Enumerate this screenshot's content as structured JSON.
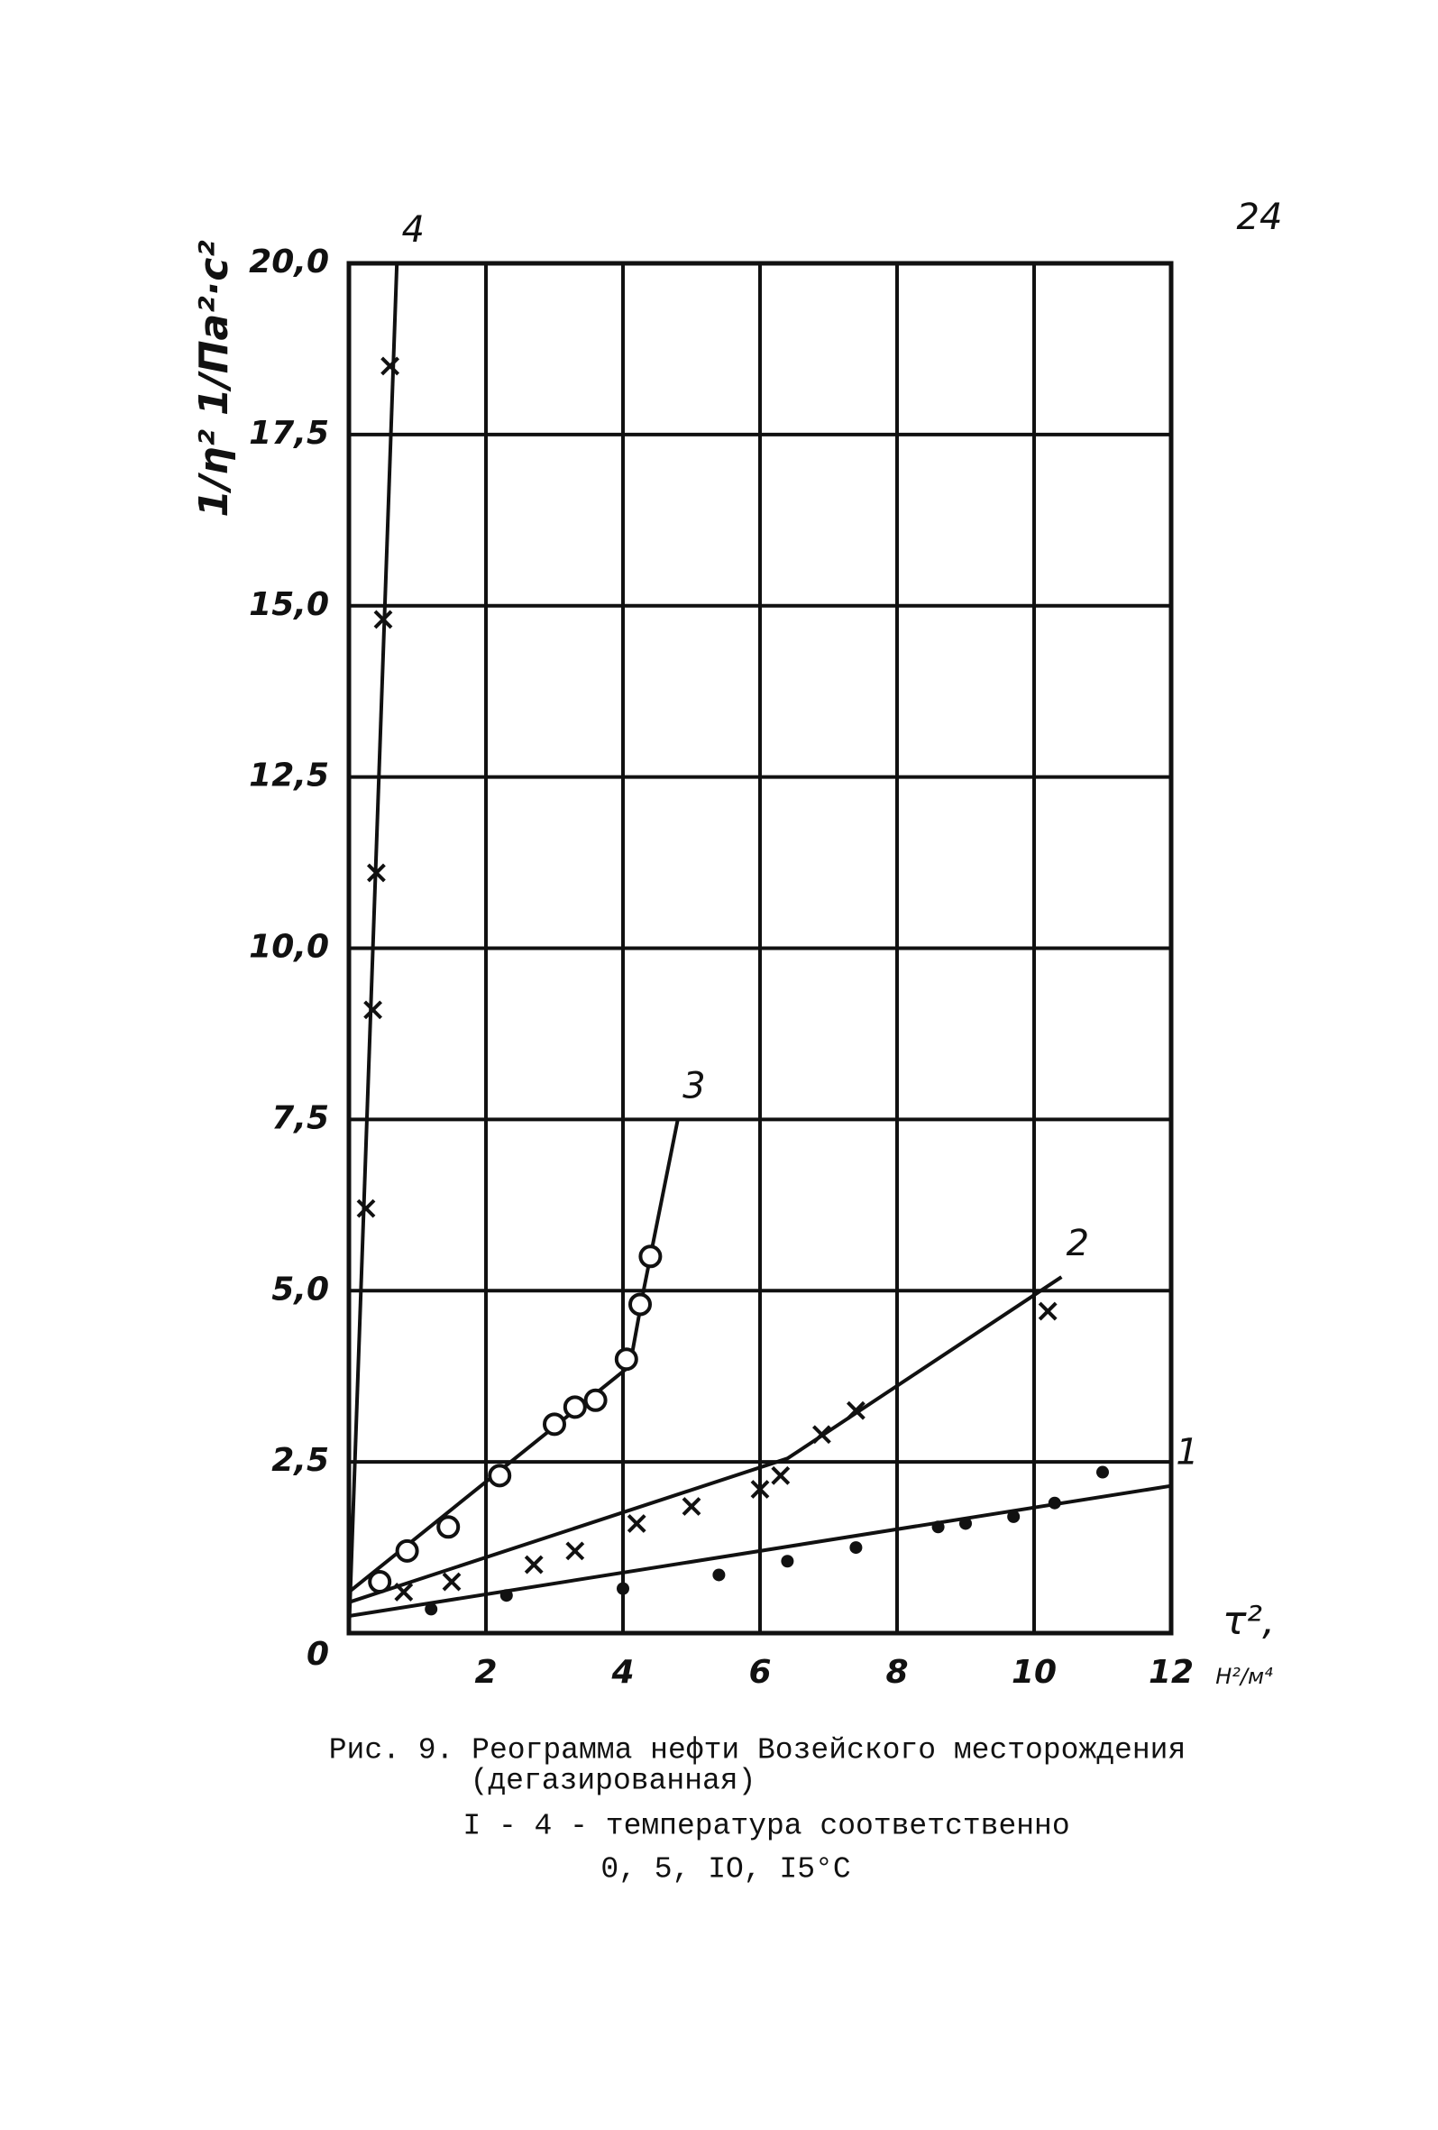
{
  "page_number": "24",
  "chart_data": {
    "type": "line",
    "y_label": "1/η² 1/Па²·с²",
    "x_label": "τ²,",
    "x_unit": "Н²/м⁴",
    "xlim": [
      0,
      12
    ],
    "ylim": [
      0,
      20
    ],
    "xticks": [
      2,
      4,
      6,
      8,
      10,
      12
    ],
    "yticks": [
      0,
      {
        "value": 2.5,
        "label": "2,5"
      },
      {
        "value": 5,
        "label": "5,0"
      },
      {
        "value": 7.5,
        "label": "7,5"
      },
      {
        "value": 10,
        "label": "10,0"
      },
      {
        "value": 12.5,
        "label": "12,5"
      },
      {
        "value": 15,
        "label": "15,0"
      },
      {
        "value": 17.5,
        "label": "17,5"
      },
      {
        "value": 20,
        "label": "20,0"
      }
    ],
    "grid": true,
    "color": "#111111",
    "series": [
      {
        "name": "1",
        "marker": "dot",
        "points": {
          "x": [
            1.2,
            2.3,
            4,
            5.4,
            6.4,
            7.4,
            8.6,
            9,
            9.7,
            10.3,
            11
          ],
          "y": [
            0.35,
            0.55,
            0.65,
            0.85,
            1.05,
            1.25,
            1.55,
            1.6,
            1.7,
            1.9,
            2.35
          ]
        },
        "line": {
          "x": [
            0,
            12
          ],
          "y": [
            0.25,
            2.15
          ]
        }
      },
      {
        "name": "2",
        "marker": "cross",
        "points": {
          "x": [
            0.8,
            1.5,
            2.7,
            3.3,
            4.2,
            5,
            6,
            6.3,
            6.9,
            7.4,
            10.2
          ],
          "y": [
            0.6,
            0.75,
            1.0,
            1.2,
            1.6,
            1.85,
            2.1,
            2.3,
            2.9,
            3.25,
            4.7
          ]
        },
        "line": {
          "x": [
            0,
            6.4,
            10.4
          ],
          "y": [
            0.45,
            2.55,
            5.2
          ]
        }
      },
      {
        "name": "3",
        "marker": "circle",
        "points": {
          "x": [
            0.45,
            0.85,
            1.45,
            2.2,
            3,
            3.3,
            3.6,
            4.05,
            4.25,
            4.4
          ],
          "y": [
            0.75,
            1.2,
            1.55,
            2.3,
            3.05,
            3.3,
            3.4,
            4.0,
            4.8,
            5.5
          ]
        },
        "line": {
          "x": [
            0,
            4.1,
            4.3,
            4.8
          ],
          "y": [
            0.6,
            3.9,
            5.0,
            7.5
          ]
        }
      },
      {
        "name": "4",
        "marker": "cross",
        "points": {
          "x": [
            0.25,
            0.35,
            0.4,
            0.5,
            0.6
          ],
          "y": [
            6.2,
            9.1,
            11.1,
            14.8,
            18.5
          ]
        },
        "line": {
          "x": [
            0,
            0.7
          ],
          "y": [
            0,
            20
          ]
        }
      }
    ],
    "caption": [
      "Рис. 9. Реограмма нефти Возейского месторождения",
      "(дегазированная)",
      "I - 4 - температура соответственно",
      "0, 5, IO, I5°C"
    ]
  }
}
